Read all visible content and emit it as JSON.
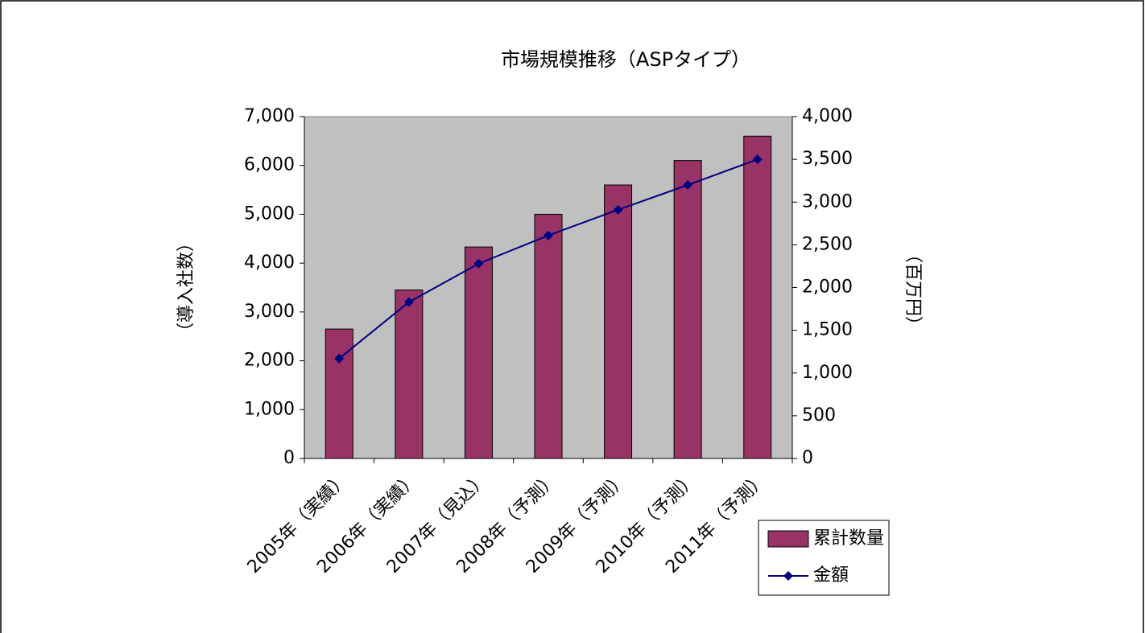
{
  "chart_data": {
    "type": "bar_line",
    "title": "市場規模推移（ASPタイプ）",
    "ylabel": "（導入社数）",
    "y2label": "（百万円）",
    "categories": [
      "2005年（実績）",
      "2006年（実績）",
      "2007年（見込）",
      "2008年（予測）",
      "2009年（予測）",
      "2010年（予測）",
      "2011年（予測）"
    ],
    "series": [
      {
        "name": "累計数量",
        "type": "bar",
        "color": "#993366",
        "values": [
          2650,
          3450,
          4330,
          5000,
          5600,
          6100,
          6600
        ]
      },
      {
        "name": "金額",
        "type": "line",
        "axis": "y2",
        "color": "#000080",
        "values": [
          1170,
          1830,
          2280,
          2610,
          2910,
          3200,
          3500
        ]
      }
    ],
    "ylim": [
      0,
      7000
    ],
    "yticks": [
      0,
      {
        "value": 1000,
        "label": "1,000"
      },
      {
        "value": 2000,
        "label": "2,000"
      },
      {
        "value": 3000,
        "label": "3,000"
      },
      {
        "value": 4000,
        "label": "4,000"
      },
      {
        "value": 5000,
        "label": "5,000"
      },
      {
        "value": 6000,
        "label": "6,000"
      },
      {
        "value": 7000,
        "label": "7,000"
      }
    ],
    "y2lim": [
      0,
      4000
    ],
    "y2ticks": [
      0,
      500,
      {
        "value": 1000,
        "label": "1,000"
      },
      {
        "value": 1500,
        "label": "1,500"
      },
      {
        "value": 2000,
        "label": "2,000"
      },
      {
        "value": 2500,
        "label": "2,500"
      },
      {
        "value": 3000,
        "label": "3,000"
      },
      {
        "value": 3500,
        "label": "3,500"
      },
      {
        "value": 4000,
        "label": "4,000"
      }
    ],
    "plot_background": "#c0c0c0",
    "legend": "lower right"
  }
}
